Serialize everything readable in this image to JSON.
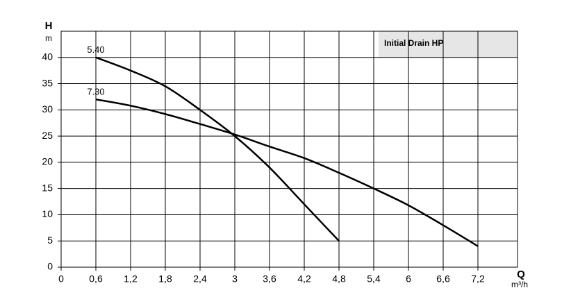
{
  "chart_data": {
    "type": "line",
    "legend_title": "Initial Drain HP",
    "y_label": "H",
    "y_unit": "m",
    "x_label": "Q",
    "x_unit": "m³/h",
    "x": [
      0.6,
      1.2,
      1.8,
      2.4,
      3,
      3.6,
      4.2,
      4.8,
      5.4,
      6,
      6.6,
      7.2
    ],
    "series": [
      {
        "name": "5.40",
        "color": "#000000",
        "values": [
          40,
          37.5,
          34.5,
          30,
          25,
          19,
          12,
          5,
          null,
          null,
          null,
          null
        ]
      },
      {
        "name": "7.30",
        "color": "#000000",
        "values": [
          32,
          30.8,
          29.2,
          27.3,
          25.3,
          23,
          20.8,
          18,
          15,
          11.8,
          8,
          4
        ]
      }
    ],
    "xlim": [
      0,
      7.8
    ],
    "xticks": [
      0,
      {
        "value": 0.6,
        "label": "0,6"
      },
      {
        "value": 1.2,
        "label": "1,2"
      },
      {
        "value": 1.8,
        "label": "1,8"
      },
      {
        "value": 2.4,
        "label": "2,4"
      },
      3,
      {
        "value": 3.6,
        "label": "3,6"
      },
      {
        "value": 4.2,
        "label": "4,2"
      },
      {
        "value": 4.8,
        "label": "4,8"
      },
      {
        "value": 5.4,
        "label": "5,4"
      },
      6,
      {
        "value": 6.6,
        "label": "6,6"
      },
      {
        "value": 7.2,
        "label": "7,2"
      }
    ],
    "ylim": [
      0,
      45
    ],
    "yticks": [
      0,
      5,
      10,
      15,
      20,
      25,
      30,
      35,
      40
    ],
    "grid": true
  }
}
